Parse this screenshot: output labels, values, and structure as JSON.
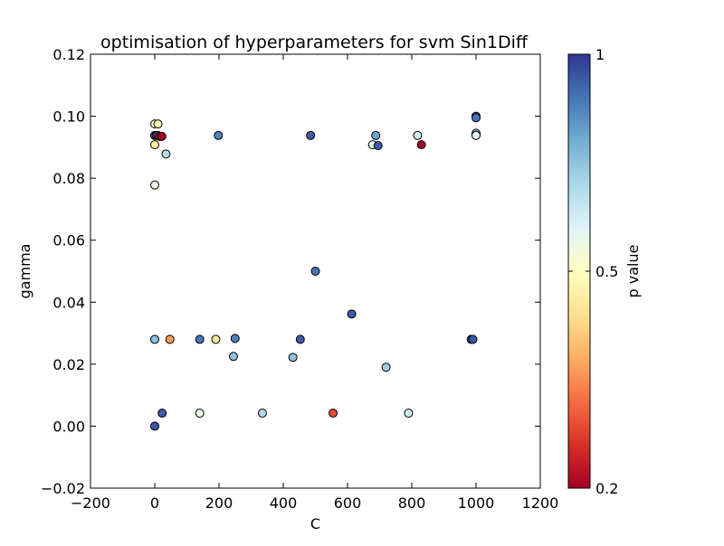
{
  "chart_data": {
    "type": "scatter",
    "title": "optimisation of hyperparameters for svm Sin1Diff",
    "xlabel": "C",
    "ylabel": "gamma",
    "xlim": [
      -200,
      1200
    ],
    "ylim": [
      -0.02,
      0.12
    ],
    "x_ticks": [
      "−200",
      "0",
      "200",
      "400",
      "600",
      "800",
      "1000",
      "1200"
    ],
    "y_ticks": [
      "−0.02",
      "0.00",
      "0.02",
      "0.04",
      "0.06",
      "0.08",
      "0.10",
      "0.12"
    ],
    "colorbar": {
      "label": "p value",
      "min": 0.2,
      "max": 1,
      "ticks": [
        "0.2",
        "0.5",
        "1"
      ],
      "colormap": "RdYlBu",
      "stops": [
        "#a50026",
        "#d73027",
        "#f46d43",
        "#fdae61",
        "#fee090",
        "#ffffbf",
        "#e0f3f8",
        "#abd9e9",
        "#74add1",
        "#4575b4",
        "#313695"
      ]
    },
    "grid": false,
    "points": [
      {
        "x": 0,
        "y": 0.0975,
        "p": 0.62
      },
      {
        "x": 10,
        "y": 0.0975,
        "p": 0.58
      },
      {
        "x": 0,
        "y": 0.0938,
        "p": 0.96
      },
      {
        "x": 5,
        "y": 0.0938,
        "p": 0.95
      },
      {
        "x": 10,
        "y": 0.0938,
        "p": 0.9
      },
      {
        "x": 15,
        "y": 0.0935,
        "p": 0.2
      },
      {
        "x": 22,
        "y": 0.0935,
        "p": 0.2
      },
      {
        "x": 0,
        "y": 0.0908,
        "p": 0.55
      },
      {
        "x": 35,
        "y": 0.0878,
        "p": 0.75
      },
      {
        "x": 0,
        "y": 0.0778,
        "p": 0.65
      },
      {
        "x": 198,
        "y": 0.0938,
        "p": 0.9
      },
      {
        "x": 485,
        "y": 0.0938,
        "p": 0.95
      },
      {
        "x": 688,
        "y": 0.0938,
        "p": 0.85
      },
      {
        "x": 818,
        "y": 0.0938,
        "p": 0.7
      },
      {
        "x": 678,
        "y": 0.0908,
        "p": 0.66
      },
      {
        "x": 695,
        "y": 0.0905,
        "p": 0.95
      },
      {
        "x": 830,
        "y": 0.0908,
        "p": 0.2
      },
      {
        "x": 1000,
        "y": 0.1,
        "p": 0.96
      },
      {
        "x": 1000,
        "y": 0.0995,
        "p": 0.92
      },
      {
        "x": 1000,
        "y": 0.0945,
        "p": 0.82
      },
      {
        "x": 1000,
        "y": 0.0938,
        "p": 0.68
      },
      {
        "x": 500,
        "y": 0.05,
        "p": 0.92
      },
      {
        "x": 613,
        "y": 0.0362,
        "p": 0.95
      },
      {
        "x": 0,
        "y": 0.028,
        "p": 0.8
      },
      {
        "x": 47,
        "y": 0.028,
        "p": 0.42
      },
      {
        "x": 140,
        "y": 0.028,
        "p": 0.92
      },
      {
        "x": 190,
        "y": 0.028,
        "p": 0.55
      },
      {
        "x": 250,
        "y": 0.0283,
        "p": 0.9
      },
      {
        "x": 453,
        "y": 0.028,
        "p": 0.95
      },
      {
        "x": 985,
        "y": 0.028,
        "p": 0.97
      },
      {
        "x": 990,
        "y": 0.028,
        "p": 0.96
      },
      {
        "x": 245,
        "y": 0.0225,
        "p": 0.8
      },
      {
        "x": 430,
        "y": 0.0222,
        "p": 0.8
      },
      {
        "x": 720,
        "y": 0.019,
        "p": 0.78
      },
      {
        "x": 23,
        "y": 0.0042,
        "p": 0.95
      },
      {
        "x": 140,
        "y": 0.0042,
        "p": 0.65
      },
      {
        "x": 335,
        "y": 0.0042,
        "p": 0.75
      },
      {
        "x": 555,
        "y": 0.0042,
        "p": 0.32
      },
      {
        "x": 790,
        "y": 0.0042,
        "p": 0.7
      },
      {
        "x": 0,
        "y": 0.0,
        "p": 0.96
      }
    ]
  }
}
